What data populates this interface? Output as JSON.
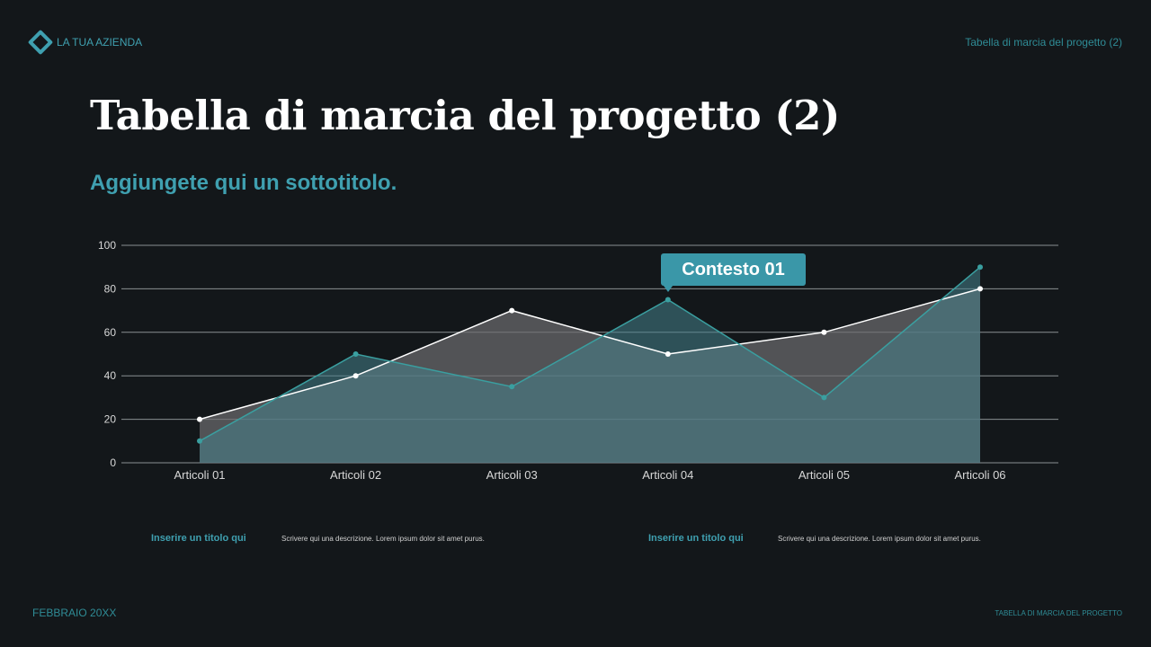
{
  "header": {
    "company": "LA TUA AZIENDA",
    "logo_icon": "diamond-icon",
    "right_title": "Tabella di marcia del progetto (2)"
  },
  "title": "Tabella di marcia del progetto (2)",
  "subtitle": "Aggiungete qui un sottotitolo.",
  "callout": "Contesto 01",
  "notes": [
    {
      "title": "Inserire un titolo qui",
      "desc": "Scrivere qui una descrizione. Lorem ipsum dolor sit amet  purus."
    },
    {
      "title": "Inserire un titolo qui",
      "desc": "Scrivere qui una descrizione. Lorem ipsum dolor sit amet  purus."
    }
  ],
  "footer": {
    "date": "FEBBRAIO 20XX",
    "right": "TABELLA DI MARCIA DEL PROGETTO"
  },
  "colors": {
    "accent": "#3fa0b0",
    "series_white": "#ffffff",
    "series_teal": "#3a9fa0"
  },
  "chart_data": {
    "type": "area",
    "categories": [
      "Articoli 01",
      "Articoli 02",
      "Articoli 03",
      "Articoli 04",
      "Articoli 05",
      "Articoli 06"
    ],
    "series": [
      {
        "values": [
          20,
          40,
          70,
          50,
          60,
          80
        ],
        "color": "#ffffff"
      },
      {
        "values": [
          10,
          50,
          35,
          75,
          30,
          90
        ],
        "color": "#3a9fa0"
      }
    ],
    "ylim": [
      0,
      100
    ],
    "yticks": [
      0,
      20,
      40,
      60,
      80,
      100
    ],
    "grid": true,
    "legend": "none"
  }
}
